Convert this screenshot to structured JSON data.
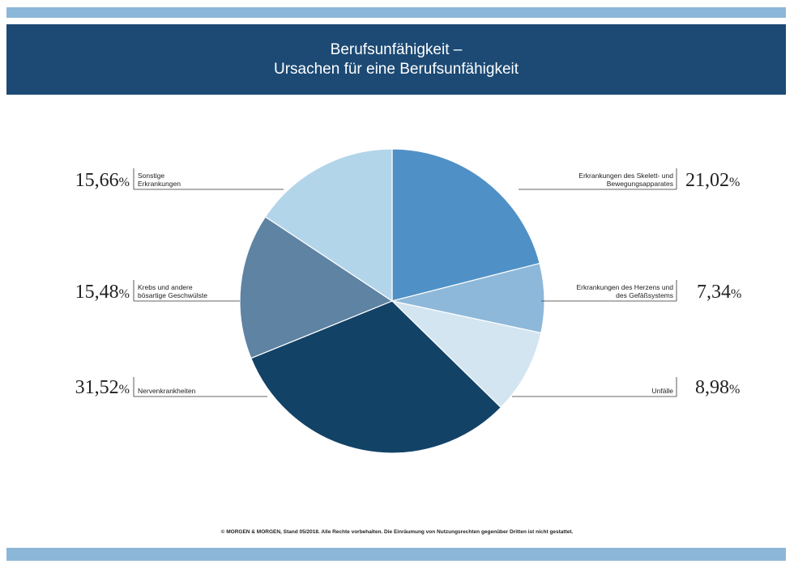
{
  "title": {
    "line1": "Berufsunfähigkeit –",
    "line2": "Ursachen für eine Berufsunfähigkeit"
  },
  "footer": "© MORGEN & MORGEN, Stand 05/2018. Alle Rechte vorbehalten. Die Einräumung von Nutzungsrechten gegenüber Dritten ist nicht gestattet.",
  "colors": {
    "top_bar": "#8cb7d8",
    "title_band": "#1c4a74",
    "bottom_bar": "#8cb7d8"
  },
  "chart_data": {
    "type": "pie",
    "start": "top",
    "direction": "clockwise",
    "slices": [
      {
        "label_lines": [
          "Erkrankungen des Skelett- und",
          "Bewegungsapparates"
        ],
        "value": 21.02,
        "display": "21,02",
        "unit": "%",
        "color": "#4f91c6",
        "side": "right"
      },
      {
        "label_lines": [
          "Erkrankungen des Herzens und",
          "des Gefäßsystems"
        ],
        "value": 7.34,
        "display": "7,34",
        "unit": "%",
        "color": "#8db8d9",
        "side": "right"
      },
      {
        "label_lines": [
          "Unfälle"
        ],
        "value": 8.98,
        "display": "8,98",
        "unit": "%",
        "color": "#d3e5f0",
        "side": "right"
      },
      {
        "label_lines": [
          "Nervenkrankheiten"
        ],
        "value": 31.52,
        "display": "31,52",
        "unit": "%",
        "color": "#134267",
        "side": "left"
      },
      {
        "label_lines": [
          "Krebs und andere",
          "bösartige Geschwülste"
        ],
        "value": 15.48,
        "display": "15,48",
        "unit": "%",
        "color": "#5e83a3",
        "side": "left"
      },
      {
        "label_lines": [
          "Sonstige",
          "Erkrankungen"
        ],
        "value": 15.66,
        "display": "15,66",
        "unit": "%",
        "color": "#b3d5ea",
        "side": "left"
      }
    ]
  }
}
